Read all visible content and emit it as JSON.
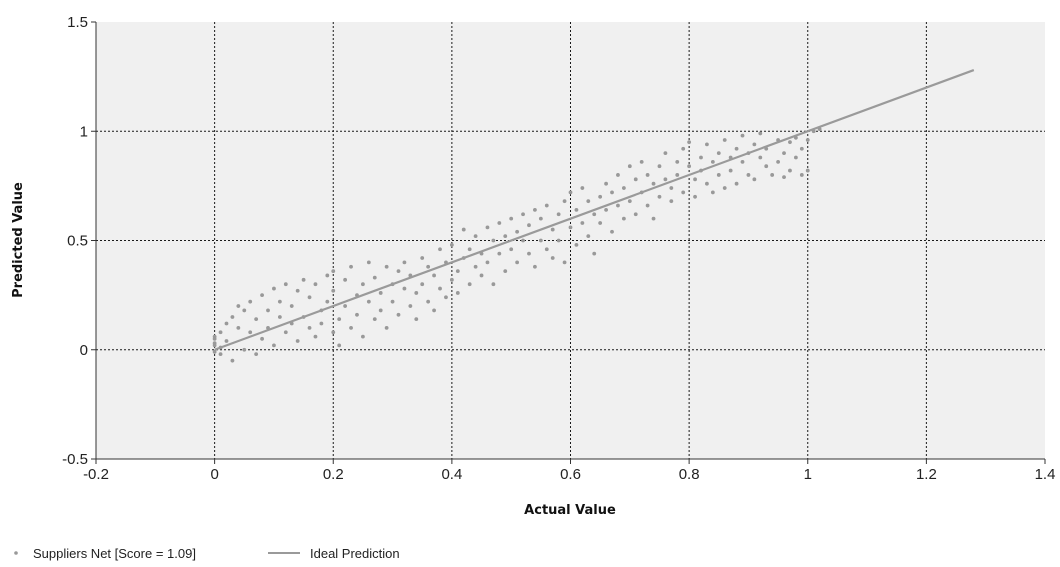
{
  "chart_data": {
    "type": "scatter",
    "xlabel": "Actual Value",
    "ylabel": "Predicted Value",
    "xlim": [
      -0.2,
      1.4
    ],
    "ylim": [
      -0.5,
      1.5
    ],
    "x_ticks": [
      "-0.2",
      "0",
      "0.2",
      "0.4",
      "0.6",
      "0.8",
      "1",
      "1.2",
      "1.4"
    ],
    "y_ticks": [
      "-0.5",
      "0",
      "0.5",
      "1",
      "1.5"
    ],
    "grid": true,
    "legend_position": "bottom-left",
    "series": [
      {
        "name": "Suppliers Net [Score = 1.09]",
        "type": "scatter",
        "color": "#999999",
        "points": [
          [
            0.0,
            0.02
          ],
          [
            0.0,
            0.05
          ],
          [
            0.0,
            -0.01
          ],
          [
            0.0,
            0.03
          ],
          [
            0.0,
            0.06
          ],
          [
            0.01,
            0.01
          ],
          [
            0.01,
            0.08
          ],
          [
            0.01,
            -0.02
          ],
          [
            0.02,
            0.12
          ],
          [
            0.02,
            0.04
          ],
          [
            0.03,
            0.15
          ],
          [
            0.03,
            -0.05
          ],
          [
            0.04,
            0.2
          ],
          [
            0.04,
            0.1
          ],
          [
            0.05,
            0.0
          ],
          [
            0.05,
            0.18
          ],
          [
            0.06,
            0.08
          ],
          [
            0.06,
            0.22
          ],
          [
            0.07,
            -0.02
          ],
          [
            0.07,
            0.14
          ],
          [
            0.08,
            0.25
          ],
          [
            0.08,
            0.05
          ],
          [
            0.09,
            0.18
          ],
          [
            0.09,
            0.1
          ],
          [
            0.1,
            0.28
          ],
          [
            0.1,
            0.02
          ],
          [
            0.11,
            0.15
          ],
          [
            0.11,
            0.22
          ],
          [
            0.12,
            0.08
          ],
          [
            0.12,
            0.3
          ],
          [
            0.13,
            0.12
          ],
          [
            0.13,
            0.2
          ],
          [
            0.14,
            0.04
          ],
          [
            0.14,
            0.27
          ],
          [
            0.15,
            0.15
          ],
          [
            0.15,
            0.32
          ],
          [
            0.16,
            0.1
          ],
          [
            0.16,
            0.24
          ],
          [
            0.17,
            0.06
          ],
          [
            0.17,
            0.3
          ],
          [
            0.18,
            0.18
          ],
          [
            0.18,
            0.12
          ],
          [
            0.19,
            0.34
          ],
          [
            0.19,
            0.22
          ],
          [
            0.2,
            0.08
          ],
          [
            0.2,
            0.27
          ],
          [
            0.2,
            0.36
          ],
          [
            0.21,
            0.14
          ],
          [
            0.21,
            0.02
          ],
          [
            0.22,
            0.2
          ],
          [
            0.22,
            0.32
          ],
          [
            0.23,
            0.1
          ],
          [
            0.23,
            0.38
          ],
          [
            0.24,
            0.25
          ],
          [
            0.24,
            0.16
          ],
          [
            0.25,
            0.3
          ],
          [
            0.25,
            0.06
          ],
          [
            0.26,
            0.22
          ],
          [
            0.26,
            0.4
          ],
          [
            0.27,
            0.14
          ],
          [
            0.27,
            0.33
          ],
          [
            0.28,
            0.26
          ],
          [
            0.28,
            0.18
          ],
          [
            0.29,
            0.38
          ],
          [
            0.29,
            0.1
          ],
          [
            0.3,
            0.3
          ],
          [
            0.3,
            0.22
          ],
          [
            0.31,
            0.36
          ],
          [
            0.31,
            0.16
          ],
          [
            0.32,
            0.28
          ],
          [
            0.32,
            0.4
          ],
          [
            0.33,
            0.2
          ],
          [
            0.33,
            0.34
          ],
          [
            0.34,
            0.26
          ],
          [
            0.34,
            0.14
          ],
          [
            0.35,
            0.42
          ],
          [
            0.35,
            0.3
          ],
          [
            0.36,
            0.22
          ],
          [
            0.36,
            0.38
          ],
          [
            0.37,
            0.18
          ],
          [
            0.37,
            0.34
          ],
          [
            0.38,
            0.46
          ],
          [
            0.38,
            0.28
          ],
          [
            0.39,
            0.24
          ],
          [
            0.39,
            0.4
          ],
          [
            0.4,
            0.32
          ],
          [
            0.4,
            0.48
          ],
          [
            0.41,
            0.36
          ],
          [
            0.41,
            0.26
          ],
          [
            0.42,
            0.55
          ],
          [
            0.42,
            0.42
          ],
          [
            0.43,
            0.3
          ],
          [
            0.43,
            0.46
          ],
          [
            0.44,
            0.38
          ],
          [
            0.44,
            0.52
          ],
          [
            0.45,
            0.34
          ],
          [
            0.45,
            0.44
          ],
          [
            0.46,
            0.56
          ],
          [
            0.46,
            0.4
          ],
          [
            0.47,
            0.3
          ],
          [
            0.47,
            0.5
          ],
          [
            0.48,
            0.44
          ],
          [
            0.48,
            0.58
          ],
          [
            0.49,
            0.36
          ],
          [
            0.49,
            0.52
          ],
          [
            0.5,
            0.46
          ],
          [
            0.5,
            0.6
          ],
          [
            0.51,
            0.4
          ],
          [
            0.51,
            0.54
          ],
          [
            0.52,
            0.5
          ],
          [
            0.52,
            0.62
          ],
          [
            0.53,
            0.44
          ],
          [
            0.53,
            0.57
          ],
          [
            0.54,
            0.38
          ],
          [
            0.54,
            0.64
          ],
          [
            0.55,
            0.5
          ],
          [
            0.55,
            0.6
          ],
          [
            0.56,
            0.46
          ],
          [
            0.56,
            0.66
          ],
          [
            0.57,
            0.55
          ],
          [
            0.57,
            0.42
          ],
          [
            0.58,
            0.62
          ],
          [
            0.58,
            0.5
          ],
          [
            0.59,
            0.4
          ],
          [
            0.59,
            0.68
          ],
          [
            0.6,
            0.56
          ],
          [
            0.6,
            0.72
          ],
          [
            0.61,
            0.48
          ],
          [
            0.61,
            0.64
          ],
          [
            0.62,
            0.58
          ],
          [
            0.62,
            0.74
          ],
          [
            0.63,
            0.52
          ],
          [
            0.63,
            0.68
          ],
          [
            0.64,
            0.62
          ],
          [
            0.64,
            0.44
          ],
          [
            0.65,
            0.7
          ],
          [
            0.65,
            0.58
          ],
          [
            0.66,
            0.76
          ],
          [
            0.66,
            0.64
          ],
          [
            0.67,
            0.54
          ],
          [
            0.67,
            0.72
          ],
          [
            0.68,
            0.66
          ],
          [
            0.68,
            0.8
          ],
          [
            0.69,
            0.6
          ],
          [
            0.69,
            0.74
          ],
          [
            0.7,
            0.68
          ],
          [
            0.7,
            0.84
          ],
          [
            0.71,
            0.62
          ],
          [
            0.71,
            0.78
          ],
          [
            0.72,
            0.72
          ],
          [
            0.72,
            0.86
          ],
          [
            0.73,
            0.66
          ],
          [
            0.73,
            0.8
          ],
          [
            0.74,
            0.76
          ],
          [
            0.74,
            0.6
          ],
          [
            0.75,
            0.84
          ],
          [
            0.75,
            0.7
          ],
          [
            0.76,
            0.78
          ],
          [
            0.76,
            0.9
          ],
          [
            0.77,
            0.74
          ],
          [
            0.77,
            0.68
          ],
          [
            0.78,
            0.86
          ],
          [
            0.78,
            0.8
          ],
          [
            0.79,
            0.92
          ],
          [
            0.79,
            0.72
          ],
          [
            0.8,
            0.84
          ],
          [
            0.8,
            0.95
          ],
          [
            0.81,
            0.78
          ],
          [
            0.81,
            0.7
          ],
          [
            0.82,
            0.88
          ],
          [
            0.82,
            0.82
          ],
          [
            0.83,
            0.76
          ],
          [
            0.83,
            0.94
          ],
          [
            0.84,
            0.86
          ],
          [
            0.84,
            0.72
          ],
          [
            0.85,
            0.9
          ],
          [
            0.85,
            0.8
          ],
          [
            0.86,
            0.96
          ],
          [
            0.86,
            0.74
          ],
          [
            0.87,
            0.88
          ],
          [
            0.87,
            0.82
          ],
          [
            0.88,
            0.92
          ],
          [
            0.88,
            0.76
          ],
          [
            0.89,
            0.86
          ],
          [
            0.89,
            0.98
          ],
          [
            0.9,
            0.8
          ],
          [
            0.9,
            0.9
          ],
          [
            0.91,
            0.94
          ],
          [
            0.91,
            0.78
          ],
          [
            0.92,
            0.88
          ],
          [
            0.92,
            0.99
          ],
          [
            0.93,
            0.84
          ],
          [
            0.93,
            0.92
          ],
          [
            0.94,
            0.8
          ],
          [
            0.95,
            0.96
          ],
          [
            0.95,
            0.86
          ],
          [
            0.96,
            0.9
          ],
          [
            0.97,
            0.82
          ],
          [
            0.97,
            0.95
          ],
          [
            0.98,
            0.88
          ],
          [
            0.99,
            0.92
          ],
          [
            0.99,
            0.8
          ],
          [
            1.0,
            0.96
          ],
          [
            1.0,
            0.82
          ],
          [
            1.01,
            1.0
          ],
          [
            1.02,
            1.01
          ],
          [
            0.98,
            0.97
          ],
          [
            0.96,
            0.79
          ]
        ]
      },
      {
        "name": "Ideal Prediction",
        "type": "line",
        "color": "#9a9a9a",
        "points": [
          [
            0.0,
            0.0
          ],
          [
            1.28,
            1.28
          ]
        ]
      }
    ]
  }
}
